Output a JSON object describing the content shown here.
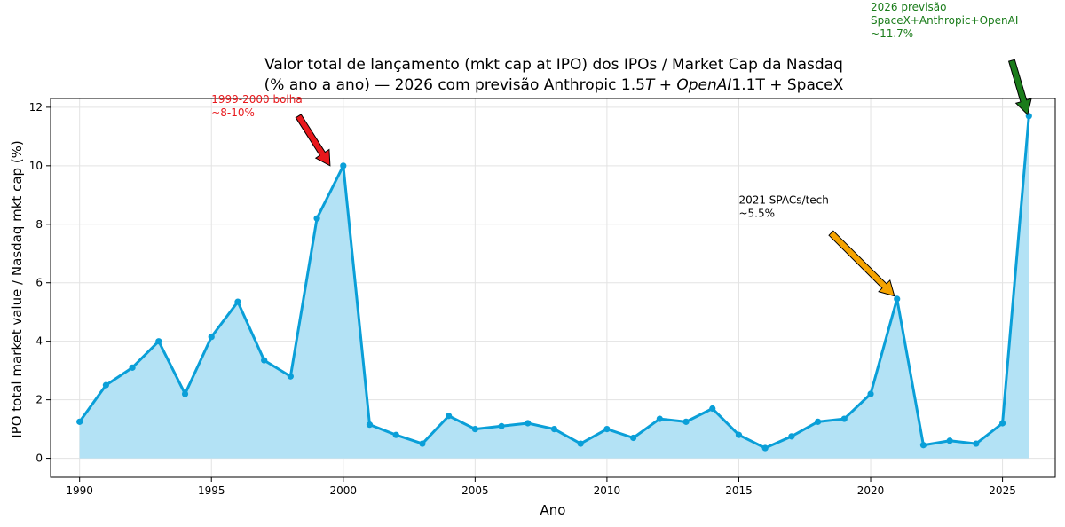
{
  "chart_data": {
    "type": "area",
    "title_line1": "Valor total de lançamento (mkt cap at IPO) dos IPOs / Market Cap da Nasdaq",
    "title_line2": "(% ano a ano) — 2026 com previsão Anthropic 1.5",
    "title_line2_i1": "T + OpenAI",
    "title_line2_r2": "1.1T + SpaceX",
    "xlabel": "Ano",
    "ylabel": "IPO total market value / Nasdaq mkt cap (%)",
    "xlim": [
      1988.9,
      2027.0
    ],
    "ylim": [
      -0.65,
      12.3
    ],
    "xticks": [
      1990,
      1995,
      2000,
      2005,
      2010,
      2015,
      2020,
      2025
    ],
    "yticks": [
      0,
      2,
      4,
      6,
      8,
      10,
      12
    ],
    "grid": true,
    "colors": {
      "line": "#0a9fd8",
      "fill": "#b3e2f5",
      "red": "#e8181c",
      "orange": "#f5a300",
      "green": "#1a7c1a"
    },
    "x": [
      1990,
      1991,
      1992,
      1993,
      1994,
      1995,
      1996,
      1997,
      1998,
      1999,
      2000,
      2001,
      2002,
      2003,
      2004,
      2005,
      2006,
      2007,
      2008,
      2009,
      2010,
      2011,
      2012,
      2013,
      2014,
      2015,
      2016,
      2017,
      2018,
      2019,
      2020,
      2021,
      2022,
      2023,
      2024,
      2025,
      2026
    ],
    "y": [
      1.25,
      2.5,
      3.1,
      4.0,
      2.2,
      4.15,
      5.35,
      3.35,
      2.8,
      8.2,
      10.0,
      1.15,
      0.8,
      0.5,
      1.45,
      1.0,
      1.1,
      1.2,
      1.0,
      0.5,
      1.0,
      0.7,
      1.35,
      1.25,
      1.7,
      0.8,
      0.35,
      0.75,
      1.25,
      1.35,
      2.2,
      5.45,
      0.45,
      0.6,
      0.5,
      1.2,
      11.7
    ],
    "annotations": [
      {
        "lines": [
          "1999-2000 bolha",
          "~8-10%"
        ],
        "color": "red",
        "text_x": 1995.0,
        "text_y": 12.15,
        "arrow_from": [
          1998.3,
          11.7
        ],
        "arrow_to": [
          1999.5,
          10.0
        ]
      },
      {
        "lines": [
          "2021 SPACs/tech",
          "~5.5%"
        ],
        "color": "orange",
        "text_x": 2015.0,
        "text_y": 8.7,
        "arrow_from": [
          2018.5,
          7.7
        ],
        "arrow_to": [
          2020.9,
          5.55
        ]
      },
      {
        "lines": [
          "2026 previsão",
          "SpaceX+Anthropic+OpenAI",
          "~11.7%"
        ],
        "color": "green",
        "text_x": 2020.0,
        "text_y": 15.3,
        "arrow_from": [
          2025.35,
          13.6
        ],
        "arrow_to": [
          2025.95,
          11.75
        ]
      }
    ]
  }
}
